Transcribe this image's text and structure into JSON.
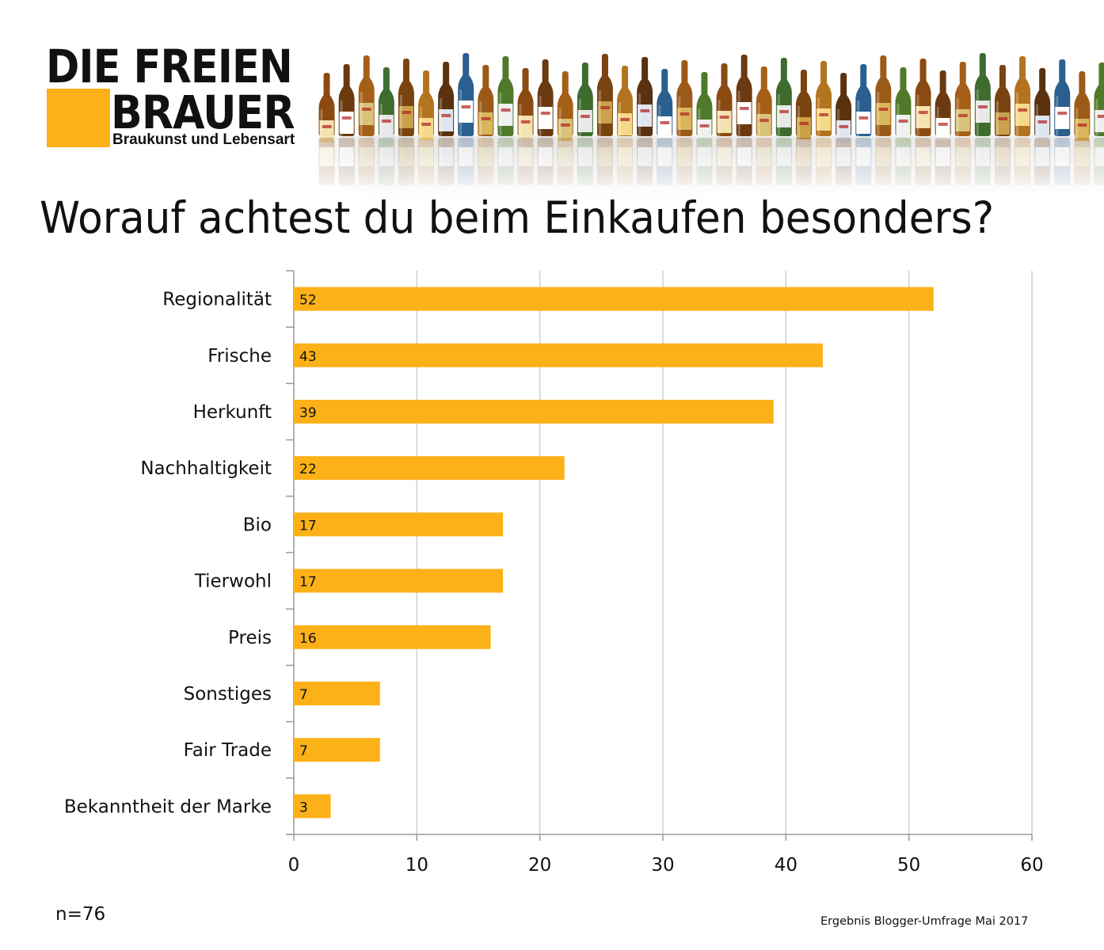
{
  "header": {
    "logo_line1": "DIE FREIEN",
    "logo_line2": "BRAUER",
    "logo_tagline": "Braukunst und Lebensart"
  },
  "title": "Worauf achtest du beim Einkaufen besonders?",
  "footer": {
    "sample_size": "n=76",
    "source": "Ergebnis Blogger-Umfrage Mai 2017"
  },
  "colors": {
    "bar": "#fbb117",
    "grid": "#d0d0d0",
    "axis": "#9a9a9a",
    "logo_square": "#fbb117"
  },
  "chart_data": {
    "type": "bar",
    "orientation": "horizontal",
    "categories": [
      "Regionalität",
      "Frische",
      "Herkunft",
      "Nachhaltigkeit",
      "Bio",
      "Tierwohl",
      "Preis",
      "Sonstiges",
      "Fair Trade",
      "Bekanntheit der Marke"
    ],
    "values": [
      52,
      43,
      39,
      22,
      17,
      17,
      16,
      7,
      7,
      3
    ],
    "data_labels": [
      "52",
      "43",
      "39",
      "22",
      "17",
      "17",
      "16",
      "7",
      "7",
      "3"
    ],
    "xlim": [
      0,
      60
    ],
    "x_ticks": [
      0,
      10,
      20,
      30,
      40,
      50,
      60
    ],
    "x_tick_labels": [
      "0",
      "10",
      "20",
      "30",
      "40",
      "50",
      "60"
    ],
    "grid": true,
    "legend": "none"
  }
}
